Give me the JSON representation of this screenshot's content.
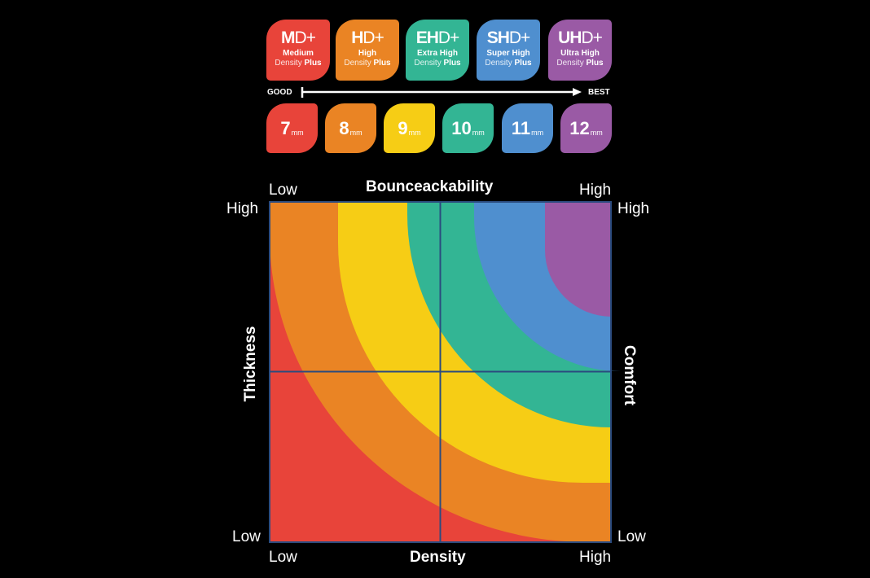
{
  "grades": [
    {
      "code_bold": "M",
      "code_rest": "D+",
      "line1": "Medium",
      "line2a": "Density",
      "line2b": "Plus",
      "color": "#e8443a"
    },
    {
      "code_bold": "H",
      "code_rest": "D+",
      "line1": "High",
      "line2a": "Density",
      "line2b": "Plus",
      "color": "#ea8424"
    },
    {
      "code_bold": "EH",
      "code_rest": "D+",
      "line1": "Extra High",
      "line2a": "Density",
      "line2b": "Plus",
      "color": "#33b594"
    },
    {
      "code_bold": "SH",
      "code_rest": "D+",
      "line1": "Super High",
      "line2a": "Density",
      "line2b": "Plus",
      "color": "#4f8fcf"
    },
    {
      "code_bold": "UH",
      "code_rest": "D+",
      "line1": "Ultra High",
      "line2a": "Density",
      "line2b": "Plus",
      "color": "#9a5aa5"
    }
  ],
  "scale": {
    "left": "GOOD",
    "right": "BEST"
  },
  "thicknesses": [
    {
      "value": "7",
      "unit": "mm",
      "color": "#e8443a"
    },
    {
      "value": "8",
      "unit": "mm",
      "color": "#ea8424"
    },
    {
      "value": "9",
      "unit": "mm",
      "color": "#f6cd15"
    },
    {
      "value": "10",
      "unit": "mm",
      "color": "#33b594"
    },
    {
      "value": "11",
      "unit": "mm",
      "color": "#4f8fcf"
    },
    {
      "value": "12",
      "unit": "mm",
      "color": "#9a5aa5"
    }
  ],
  "chart": {
    "top_title": "Bounceackability",
    "bottom_title": "Density",
    "left_title": "Thickness",
    "right_title": "Comfort",
    "top_low": "Low",
    "top_high": "High",
    "bottom_low": "Low",
    "bottom_high": "High",
    "left_high": "High",
    "left_low": "Low",
    "right_high": "High",
    "right_low": "Low",
    "background_color": "#e8443a",
    "grid_color": "#2b4b7e",
    "band_colors": [
      "#ea8424",
      "#f6cd15",
      "#33b594",
      "#4f8fcf",
      "#9a5aa5"
    ]
  }
}
